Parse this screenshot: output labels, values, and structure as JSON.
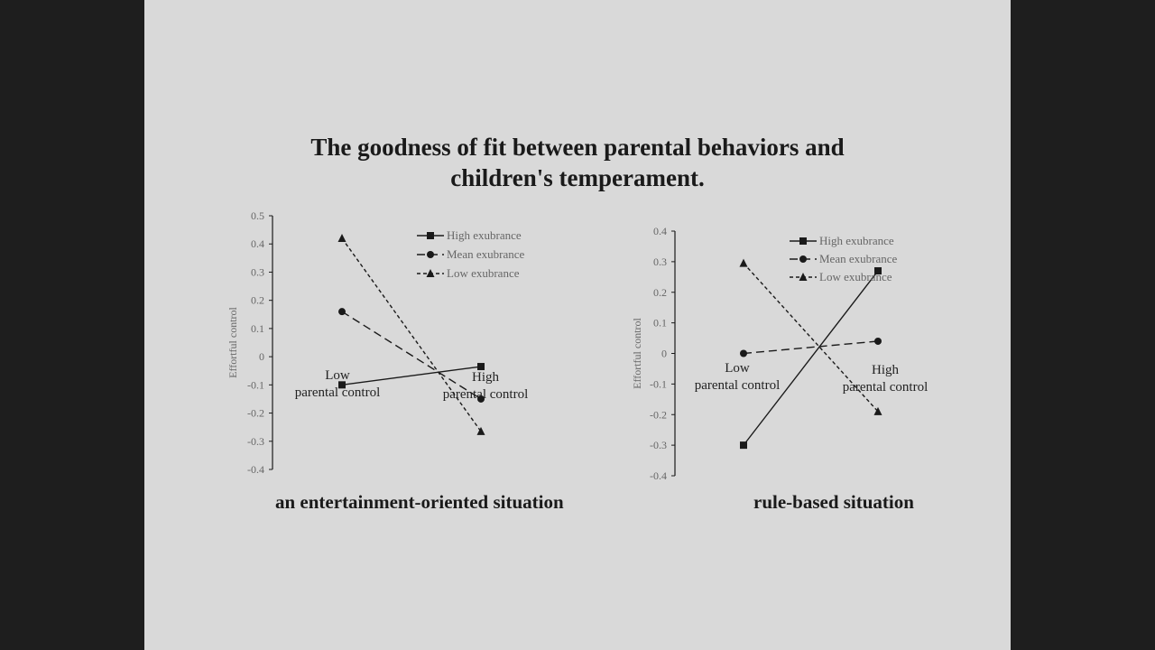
{
  "title": "The goodness of fit between parental behaviors and children's temperament.",
  "title_lines": [
    "The goodness of fit between parental behaviors and",
    "children's temperament."
  ],
  "colors": {
    "background": "#1e1e1e",
    "slide": "#d9d9d9",
    "ink": "#1a1a1a",
    "axis_text": "#666666"
  },
  "chart_data": [
    {
      "type": "line",
      "caption": "an entertainment-oriented situation",
      "ylabel": "Effortful control",
      "ylim": [
        -0.4,
        0.5
      ],
      "yticks": [
        "0.5",
        "0.4",
        "0.3",
        "0.2",
        "0.1",
        "0",
        "-0.1",
        "-0.2",
        "-0.3",
        "-0.4"
      ],
      "categories": [
        [
          "Low",
          "parental control"
        ],
        [
          "High",
          "parental control"
        ]
      ],
      "legend_position": "top-right",
      "grid": false,
      "series": [
        {
          "name": "High exubrance",
          "marker": "square",
          "dash": "solid",
          "values": [
            -0.1,
            -0.035
          ]
        },
        {
          "name": "Mean exubrance",
          "marker": "circle",
          "dash": "longdash",
          "values": [
            0.16,
            -0.15
          ]
        },
        {
          "name": "Low exubrance",
          "marker": "triangle",
          "dash": "shortdash",
          "values": [
            0.42,
            -0.265
          ]
        }
      ]
    },
    {
      "type": "line",
      "caption": "rule-based situation",
      "ylabel": "Effortful control",
      "ylim": [
        -0.4,
        0.4
      ],
      "yticks": [
        "0.4",
        "0.3",
        "0.2",
        "0.1",
        "0",
        "-0.1",
        "-0.2",
        "-0.3",
        "-0.4"
      ],
      "categories": [
        [
          "Low",
          "parental control"
        ],
        [
          "High",
          "parental control"
        ]
      ],
      "legend_position": "top-right",
      "grid": false,
      "series": [
        {
          "name": "High exubrance",
          "marker": "square",
          "dash": "solid",
          "values": [
            -0.3,
            0.27
          ]
        },
        {
          "name": "Mean exubrance",
          "marker": "circle",
          "dash": "longdash",
          "values": [
            0.0,
            0.04
          ]
        },
        {
          "name": "Low exubrance",
          "marker": "triangle",
          "dash": "shortdash",
          "values": [
            0.295,
            -0.19
          ]
        }
      ]
    }
  ]
}
